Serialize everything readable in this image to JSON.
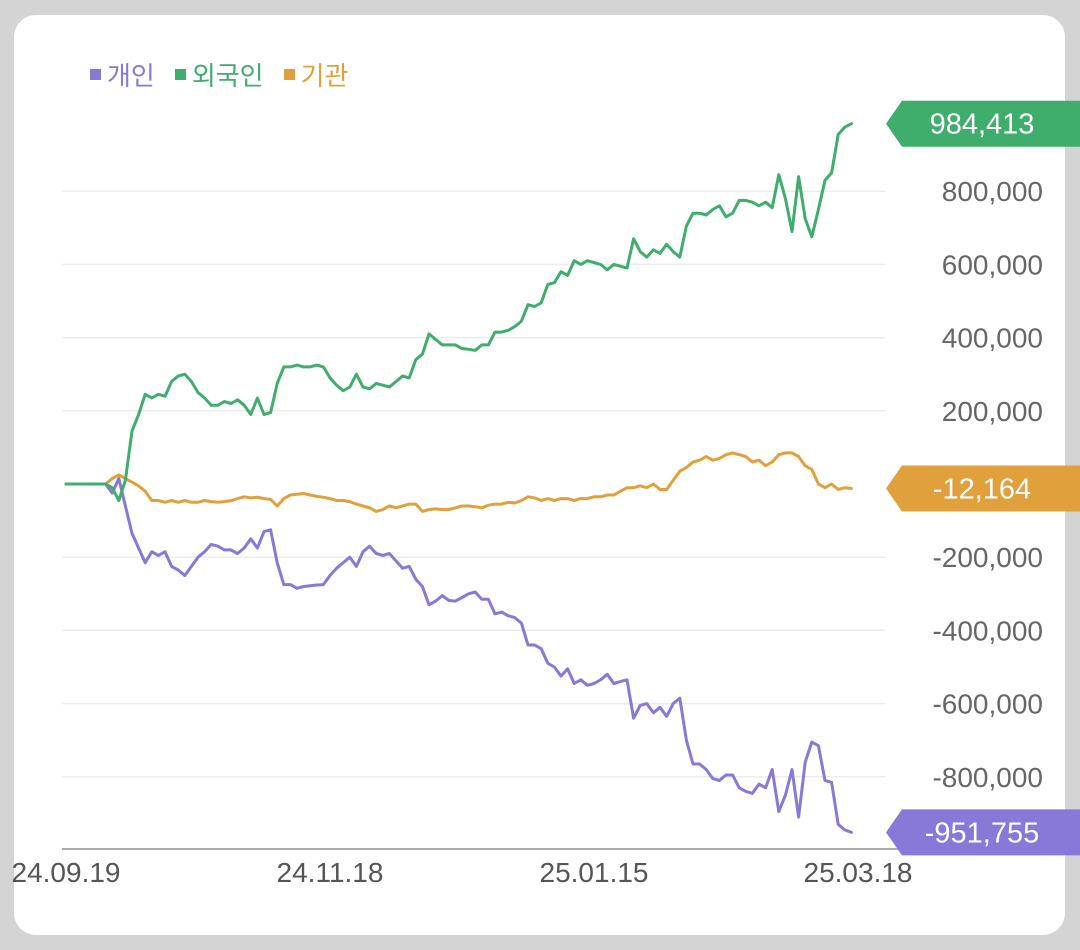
{
  "chart_data": {
    "type": "line",
    "legend_position": "top-left",
    "grid": true,
    "ylim": [
      -1000000,
      1050000
    ],
    "y_ticks": [
      {
        "value": 800000,
        "label": "800,000"
      },
      {
        "value": 600000,
        "label": "600,000"
      },
      {
        "value": 400000,
        "label": "400,000"
      },
      {
        "value": 200000,
        "label": "200,000"
      },
      {
        "value": -200000,
        "label": "-200,000"
      },
      {
        "value": -400000,
        "label": "-400,000"
      },
      {
        "value": -600000,
        "label": "-600,000"
      },
      {
        "value": -800000,
        "label": "-800,000"
      }
    ],
    "x_ticks": [
      {
        "index": 0,
        "label": "24.09.19"
      },
      {
        "index": 40,
        "label": "24.11.18"
      },
      {
        "index": 80,
        "label": "25.01.15"
      },
      {
        "index": 120,
        "label": "25.03.18"
      }
    ],
    "n_points": 121,
    "series": [
      {
        "name": "개인",
        "color": "#8878d8",
        "last_label": "-951,755",
        "values": [
          0,
          0,
          0,
          0,
          0,
          0,
          0,
          -25000,
          15000,
          -60000,
          -135000,
          -175000,
          -215000,
          -185000,
          -195000,
          -185000,
          -225000,
          -235000,
          -250000,
          -225000,
          -200000,
          -185000,
          -165000,
          -170000,
          -180000,
          -180000,
          -190000,
          -175000,
          -150000,
          -175000,
          -130000,
          -125000,
          -215000,
          -275000,
          -275000,
          -285000,
          -280000,
          -278000,
          -276000,
          -275000,
          -250000,
          -230000,
          -215000,
          -200000,
          -225000,
          -185000,
          -170000,
          -190000,
          -195000,
          -190000,
          -210000,
          -230000,
          -225000,
          -260000,
          -280000,
          -330000,
          -320000,
          -305000,
          -318000,
          -320000,
          -310000,
          -300000,
          -295000,
          -315000,
          -315000,
          -355000,
          -350000,
          -360000,
          -365000,
          -380000,
          -440000,
          -440000,
          -450000,
          -490000,
          -500000,
          -525000,
          -505000,
          -545000,
          -535000,
          -550000,
          -545000,
          -535000,
          -520000,
          -545000,
          -540000,
          -535000,
          -640000,
          -605000,
          -600000,
          -625000,
          -610000,
          -635000,
          -600000,
          -585000,
          -700000,
          -765000,
          -765000,
          -780000,
          -805000,
          -810000,
          -795000,
          -795000,
          -830000,
          -840000,
          -845000,
          -820000,
          -830000,
          -780000,
          -895000,
          -850000,
          -780000,
          -910000,
          -760000,
          -705000,
          -715000,
          -810000,
          -815000,
          -930000,
          -945000,
          -951755
        ]
      },
      {
        "name": "외국인",
        "color": "#3fad6b",
        "last_label": "984,413",
        "values": [
          0,
          0,
          0,
          0,
          0,
          0,
          0,
          -10000,
          -45000,
          10000,
          145000,
          190000,
          245000,
          235000,
          245000,
          240000,
          280000,
          295000,
          300000,
          280000,
          250000,
          235000,
          215000,
          215000,
          225000,
          220000,
          230000,
          215000,
          190000,
          235000,
          190000,
          195000,
          275000,
          320000,
          320000,
          325000,
          320000,
          320000,
          325000,
          320000,
          290000,
          270000,
          255000,
          265000,
          300000,
          265000,
          260000,
          275000,
          270000,
          265000,
          280000,
          295000,
          290000,
          340000,
          355000,
          410000,
          395000,
          380000,
          380000,
          380000,
          370000,
          368000,
          365000,
          380000,
          380000,
          415000,
          415000,
          420000,
          430000,
          445000,
          490000,
          485000,
          495000,
          545000,
          550000,
          580000,
          570000,
          610000,
          600000,
          610000,
          605000,
          600000,
          585000,
          600000,
          595000,
          590000,
          670000,
          635000,
          620000,
          640000,
          630000,
          655000,
          635000,
          620000,
          705000,
          740000,
          740000,
          735000,
          750000,
          760000,
          730000,
          740000,
          775000,
          775000,
          770000,
          760000,
          770000,
          755000,
          845000,
          780000,
          690000,
          840000,
          725000,
          675000,
          750000,
          830000,
          850000,
          955000,
          975000,
          984413
        ]
      },
      {
        "name": "기관",
        "color": "#e0a03c",
        "last_label": "-12,164",
        "values": [
          0,
          0,
          0,
          0,
          0,
          0,
          0,
          15000,
          25000,
          15000,
          5000,
          -5000,
          -20000,
          -45000,
          -45000,
          -50000,
          -45000,
          -50000,
          -45000,
          -50000,
          -50000,
          -45000,
          -48000,
          -50000,
          -48000,
          -46000,
          -40000,
          -35000,
          -38000,
          -36000,
          -40000,
          -42000,
          -60000,
          -40000,
          -30000,
          -28000,
          -26000,
          -30000,
          -34000,
          -36000,
          -40000,
          -45000,
          -45000,
          -48000,
          -55000,
          -60000,
          -65000,
          -75000,
          -70000,
          -60000,
          -65000,
          -60000,
          -55000,
          -55000,
          -75000,
          -70000,
          -68000,
          -70000,
          -70000,
          -65000,
          -60000,
          -60000,
          -62000,
          -65000,
          -58000,
          -55000,
          -55000,
          -50000,
          -52000,
          -45000,
          -35000,
          -38000,
          -45000,
          -40000,
          -45000,
          -40000,
          -40000,
          -45000,
          -40000,
          -40000,
          -35000,
          -35000,
          -30000,
          -30000,
          -20000,
          -10000,
          -10000,
          -5000,
          -10000,
          0,
          -15000,
          -15000,
          10000,
          35000,
          45000,
          60000,
          65000,
          75000,
          65000,
          70000,
          80000,
          85000,
          80000,
          75000,
          60000,
          65000,
          50000,
          60000,
          80000,
          85000,
          85000,
          75000,
          50000,
          40000,
          0,
          -10000,
          0,
          -15000,
          -10000,
          -12164
        ]
      }
    ]
  }
}
